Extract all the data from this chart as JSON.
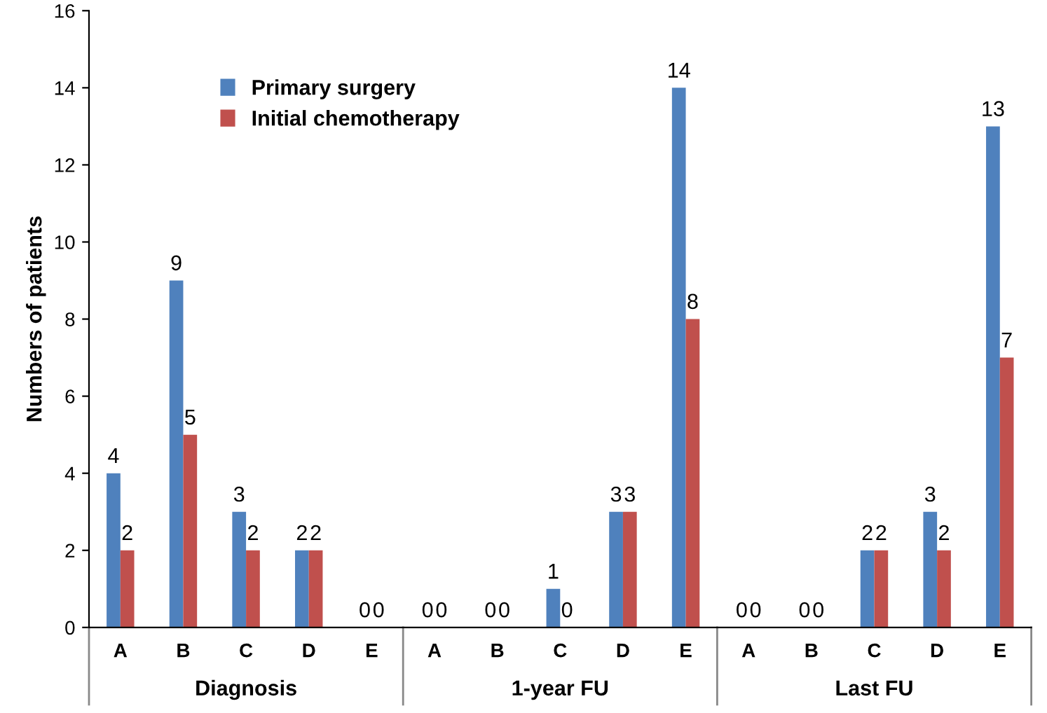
{
  "chart_data": {
    "type": "bar",
    "ylabel": "Numbers of patients",
    "categories": [
      "A",
      "B",
      "C",
      "D",
      "E",
      "A",
      "B",
      "C",
      "D",
      "E",
      "A",
      "B",
      "C",
      "D",
      "E"
    ],
    "series": [
      {
        "name": "Primary surgery",
        "color": "#4f81bd",
        "values": [
          4,
          9,
          3,
          2,
          0,
          0,
          0,
          1,
          3,
          14,
          0,
          0,
          2,
          3,
          13
        ]
      },
      {
        "name": "Initial chemotherapy",
        "color": "#c0504d",
        "values": [
          2,
          5,
          2,
          2,
          0,
          0,
          0,
          0,
          3,
          8,
          0,
          0,
          2,
          2,
          7
        ]
      }
    ],
    "ylim": [
      0,
      16
    ],
    "yticks": [
      0,
      2,
      4,
      6,
      8,
      10,
      12,
      14,
      16
    ],
    "data_labels": true,
    "legend": "top left",
    "annotations": [
      "Diagnosis",
      "1-year FU",
      "Last FU"
    ]
  }
}
